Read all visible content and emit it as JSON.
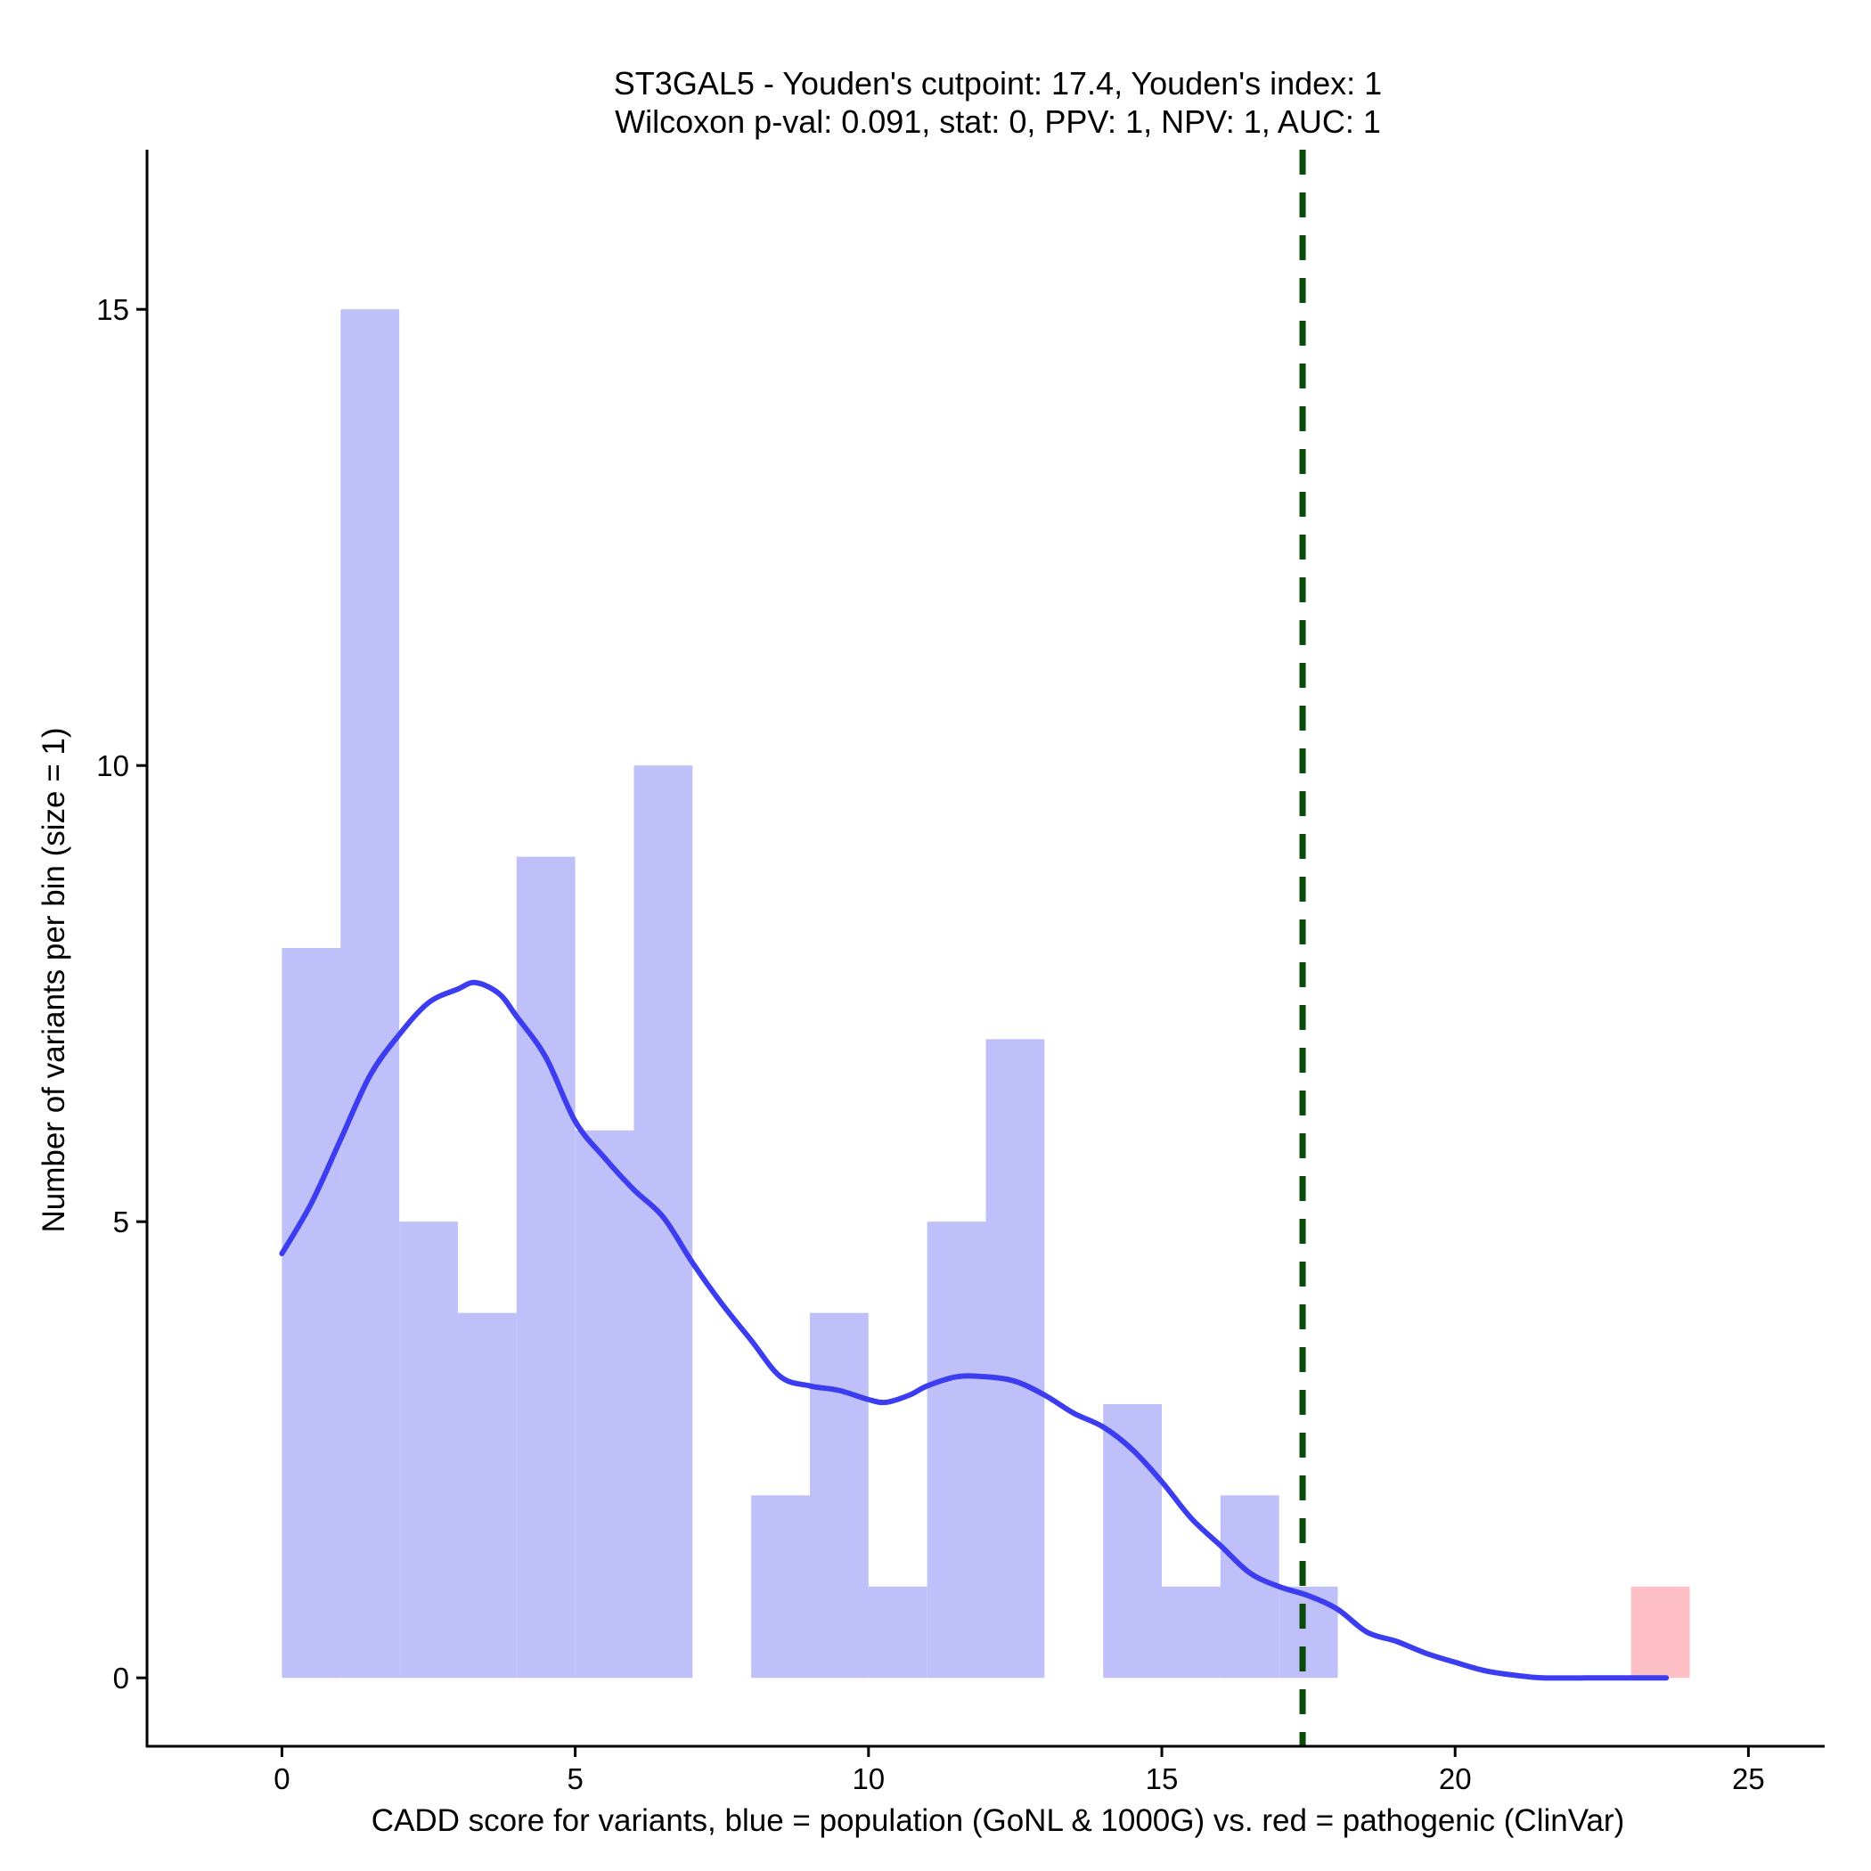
{
  "chart_data": {
    "type": "bar",
    "title_line1": "ST3GAL5 - Youden's cutpoint: 17.4, Youden's index: 1",
    "title_line2": "Wilcoxon p-val: 0.091, stat: 0, PPV: 1, NPV: 1, AUC: 1",
    "xlabel": "CADD score for variants, blue = population (GoNL & 1000G) vs. red = pathogenic (ClinVar)",
    "ylabel": "Number of variants per bin (size = 1)",
    "xlim": [
      -2.3,
      26.3
    ],
    "ylim": [
      -0.75,
      16.75
    ],
    "x_ticks": [
      0,
      5,
      10,
      15,
      20,
      25
    ],
    "y_ticks": [
      0,
      5,
      10,
      15
    ],
    "bin_width": 1,
    "series": [
      {
        "name": "population (GoNL & 1000G)",
        "color": "#bfbffa",
        "bins": [
          {
            "start": 0,
            "count": 8
          },
          {
            "start": 1,
            "count": 15
          },
          {
            "start": 2,
            "count": 5
          },
          {
            "start": 3,
            "count": 4
          },
          {
            "start": 4,
            "count": 9
          },
          {
            "start": 5,
            "count": 6
          },
          {
            "start": 6,
            "count": 10
          },
          {
            "start": 7,
            "count": 0
          },
          {
            "start": 8,
            "count": 2
          },
          {
            "start": 9,
            "count": 4
          },
          {
            "start": 10,
            "count": 1
          },
          {
            "start": 11,
            "count": 5
          },
          {
            "start": 12,
            "count": 7
          },
          {
            "start": 13,
            "count": 0
          },
          {
            "start": 14,
            "count": 3
          },
          {
            "start": 15,
            "count": 1
          },
          {
            "start": 16,
            "count": 2
          },
          {
            "start": 17,
            "count": 1
          }
        ]
      },
      {
        "name": "pathogenic (ClinVar)",
        "color": "#ffc0c5",
        "bins": [
          {
            "start": 23,
            "count": 1
          }
        ]
      }
    ],
    "density_curve": {
      "color": "#3c3cf0",
      "points": [
        [
          0.0,
          4.65
        ],
        [
          0.5,
          5.2
        ],
        [
          1.0,
          5.9
        ],
        [
          1.5,
          6.6
        ],
        [
          2.0,
          7.05
        ],
        [
          2.5,
          7.4
        ],
        [
          3.0,
          7.55
        ],
        [
          3.3,
          7.62
        ],
        [
          3.7,
          7.5
        ],
        [
          4.0,
          7.25
        ],
        [
          4.5,
          6.8
        ],
        [
          5.0,
          6.1
        ],
        [
          5.5,
          5.7
        ],
        [
          6.0,
          5.35
        ],
        [
          6.5,
          5.05
        ],
        [
          7.0,
          4.55
        ],
        [
          7.5,
          4.1
        ],
        [
          8.0,
          3.7
        ],
        [
          8.5,
          3.3
        ],
        [
          9.0,
          3.2
        ],
        [
          9.5,
          3.15
        ],
        [
          10.0,
          3.05
        ],
        [
          10.3,
          3.02
        ],
        [
          10.7,
          3.1
        ],
        [
          11.0,
          3.2
        ],
        [
          11.5,
          3.3
        ],
        [
          12.0,
          3.3
        ],
        [
          12.5,
          3.25
        ],
        [
          13.0,
          3.1
        ],
        [
          13.5,
          2.9
        ],
        [
          14.0,
          2.75
        ],
        [
          14.5,
          2.5
        ],
        [
          15.0,
          2.15
        ],
        [
          15.5,
          1.75
        ],
        [
          16.0,
          1.45
        ],
        [
          16.5,
          1.15
        ],
        [
          17.0,
          1.0
        ],
        [
          17.5,
          0.9
        ],
        [
          18.0,
          0.75
        ],
        [
          18.5,
          0.5
        ],
        [
          19.0,
          0.4
        ],
        [
          19.5,
          0.27
        ],
        [
          20.0,
          0.17
        ],
        [
          20.5,
          0.08
        ],
        [
          21.0,
          0.03
        ],
        [
          21.5,
          0.0
        ],
        [
          22.5,
          0.0
        ],
        [
          23.6,
          0.0
        ]
      ]
    },
    "cutpoint_line": {
      "x": 17.4,
      "color": "#0a4a0a",
      "style": "dashed"
    },
    "grid": false,
    "legend": "none"
  }
}
